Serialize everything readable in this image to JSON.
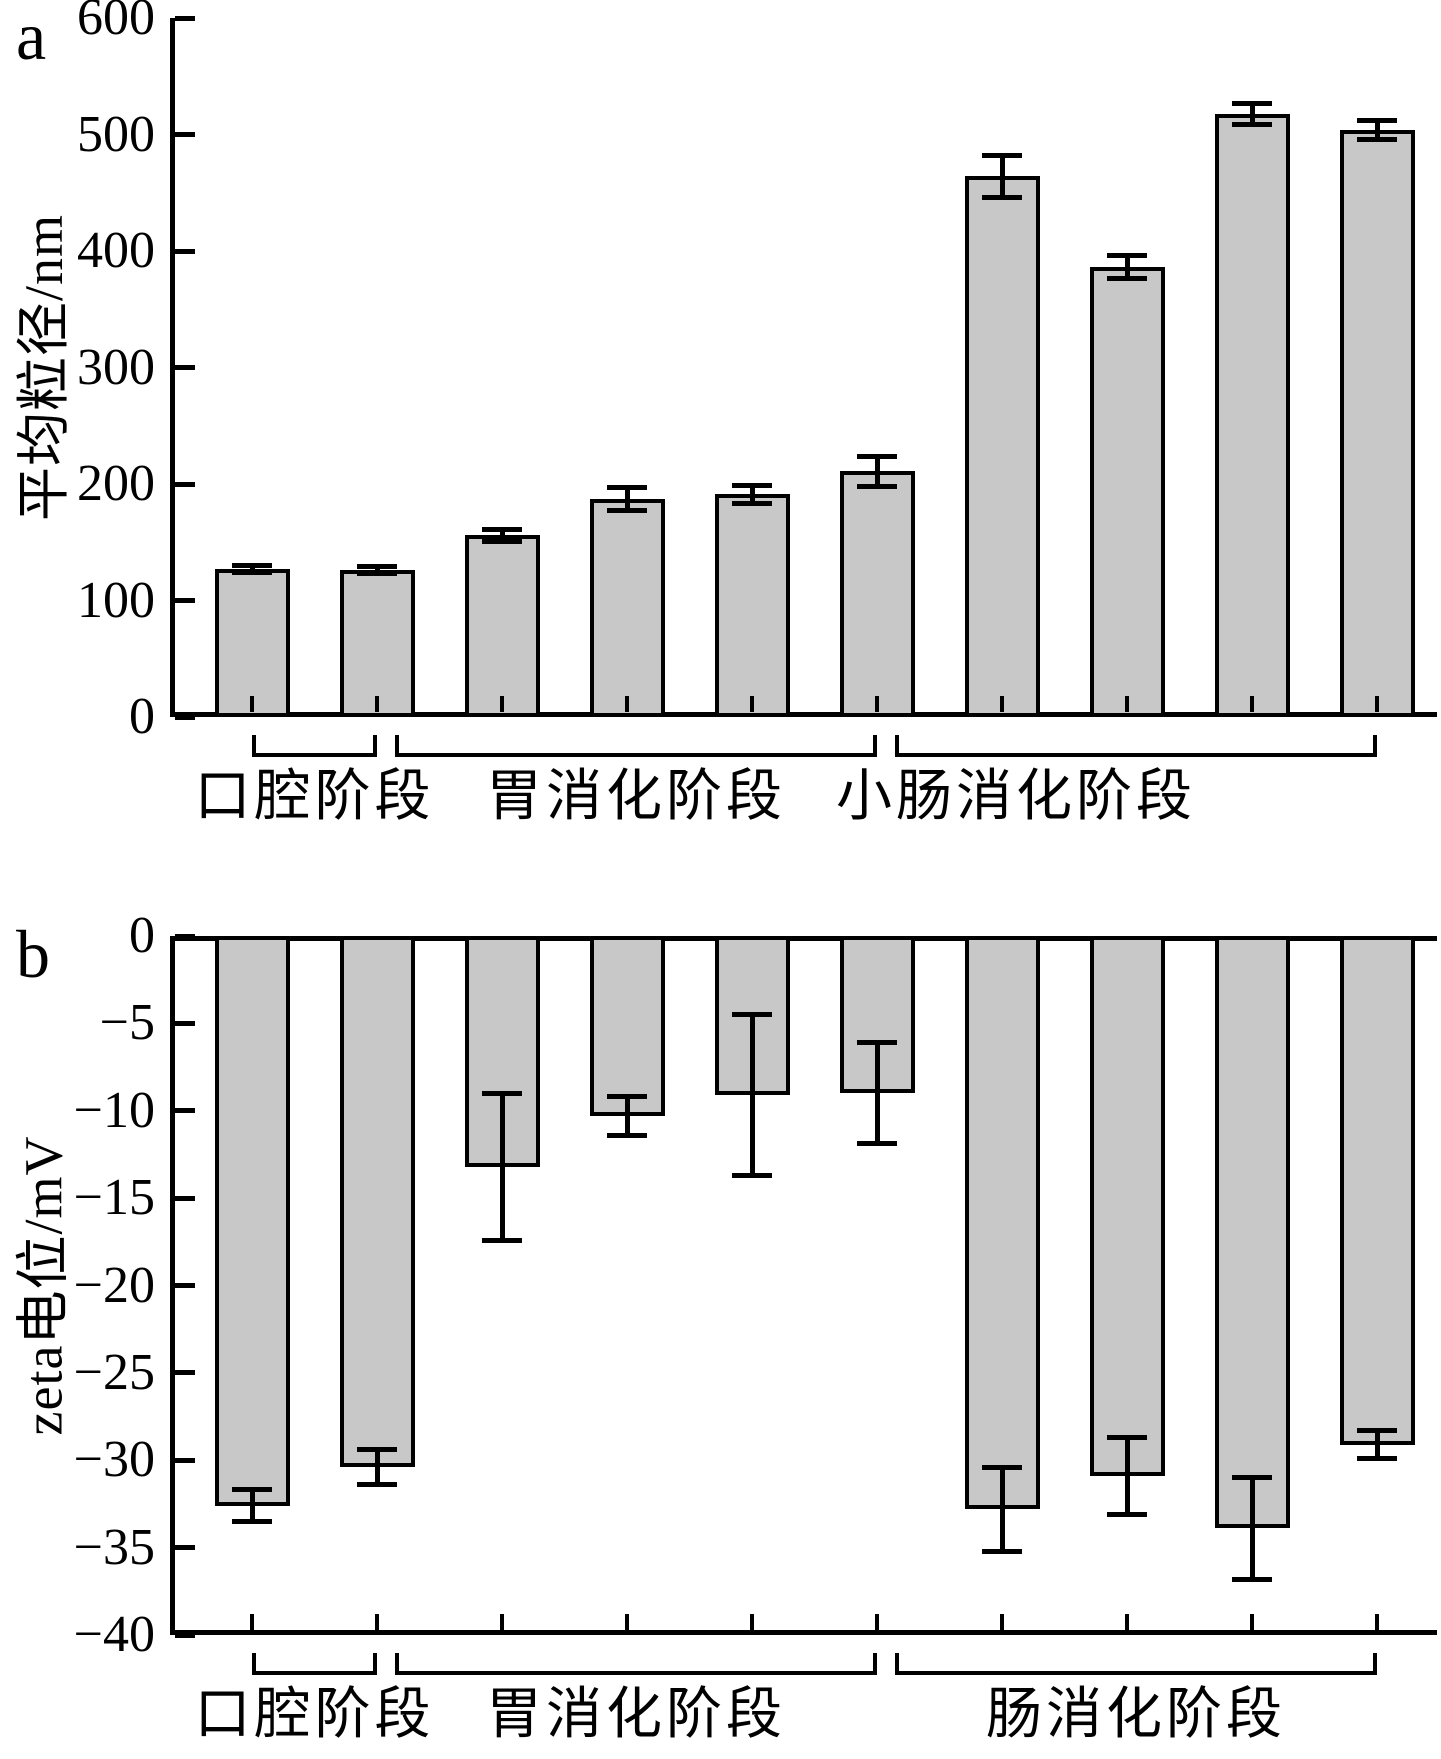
{
  "figure": {
    "bar_fill": "#c8c8c8",
    "line_color": "#000000",
    "background": "#ffffff"
  },
  "chart_data": [
    {
      "type": "bar",
      "panel_letter": "a",
      "title": "",
      "xlabel": "",
      "ylabel": "平均粒径/nm",
      "ylim": [
        0,
        600
      ],
      "ytick_values": [
        0,
        100,
        200,
        300,
        400,
        500,
        600
      ],
      "ytick_labels": [
        "0",
        "100",
        "200",
        "300",
        "400",
        "500",
        "600"
      ],
      "grid": false,
      "legend": "none",
      "bar_color": "#c8c8c8",
      "values": [
        127,
        126,
        156,
        187,
        191,
        211,
        464,
        386,
        518,
        504
      ],
      "errors": [
        3,
        3,
        5,
        10,
        8,
        13,
        18,
        10,
        9,
        8
      ],
      "groups": [
        {
          "label": "口腔阶段",
          "from": 0,
          "to": 1
        },
        {
          "label": "胃消化阶段",
          "from": 2,
          "to": 5
        },
        {
          "label": "小肠消化阶段",
          "from": 6,
          "to": 9
        }
      ]
    },
    {
      "type": "bar",
      "panel_letter": "b",
      "title": "",
      "xlabel": "",
      "ylabel": "zeta电位/mV",
      "ylim": [
        -40,
        0
      ],
      "ytick_values": [
        0,
        -5,
        -10,
        -15,
        -20,
        -25,
        -30,
        -35,
        -40
      ],
      "ytick_labels": [
        "0",
        "−5",
        "−10",
        "−15",
        "−20",
        "−25",
        "−30",
        "−35",
        "−40"
      ],
      "grid": false,
      "legend": "none",
      "bar_color": "#c8c8c8",
      "values": [
        -32.6,
        -30.4,
        -13.2,
        -10.3,
        -9.1,
        -9.0,
        -32.8,
        -30.9,
        -33.9,
        -29.1
      ],
      "errors": [
        0.9,
        1.0,
        4.2,
        1.1,
        4.6,
        2.9,
        2.4,
        2.2,
        2.9,
        0.8
      ],
      "groups": [
        {
          "label": "口腔阶段",
          "from": 0,
          "to": 1
        },
        {
          "label": "胃消化阶段",
          "from": 2,
          "to": 5
        },
        {
          "label": "肠消化阶段",
          "from": 6,
          "to": 9
        }
      ]
    }
  ]
}
